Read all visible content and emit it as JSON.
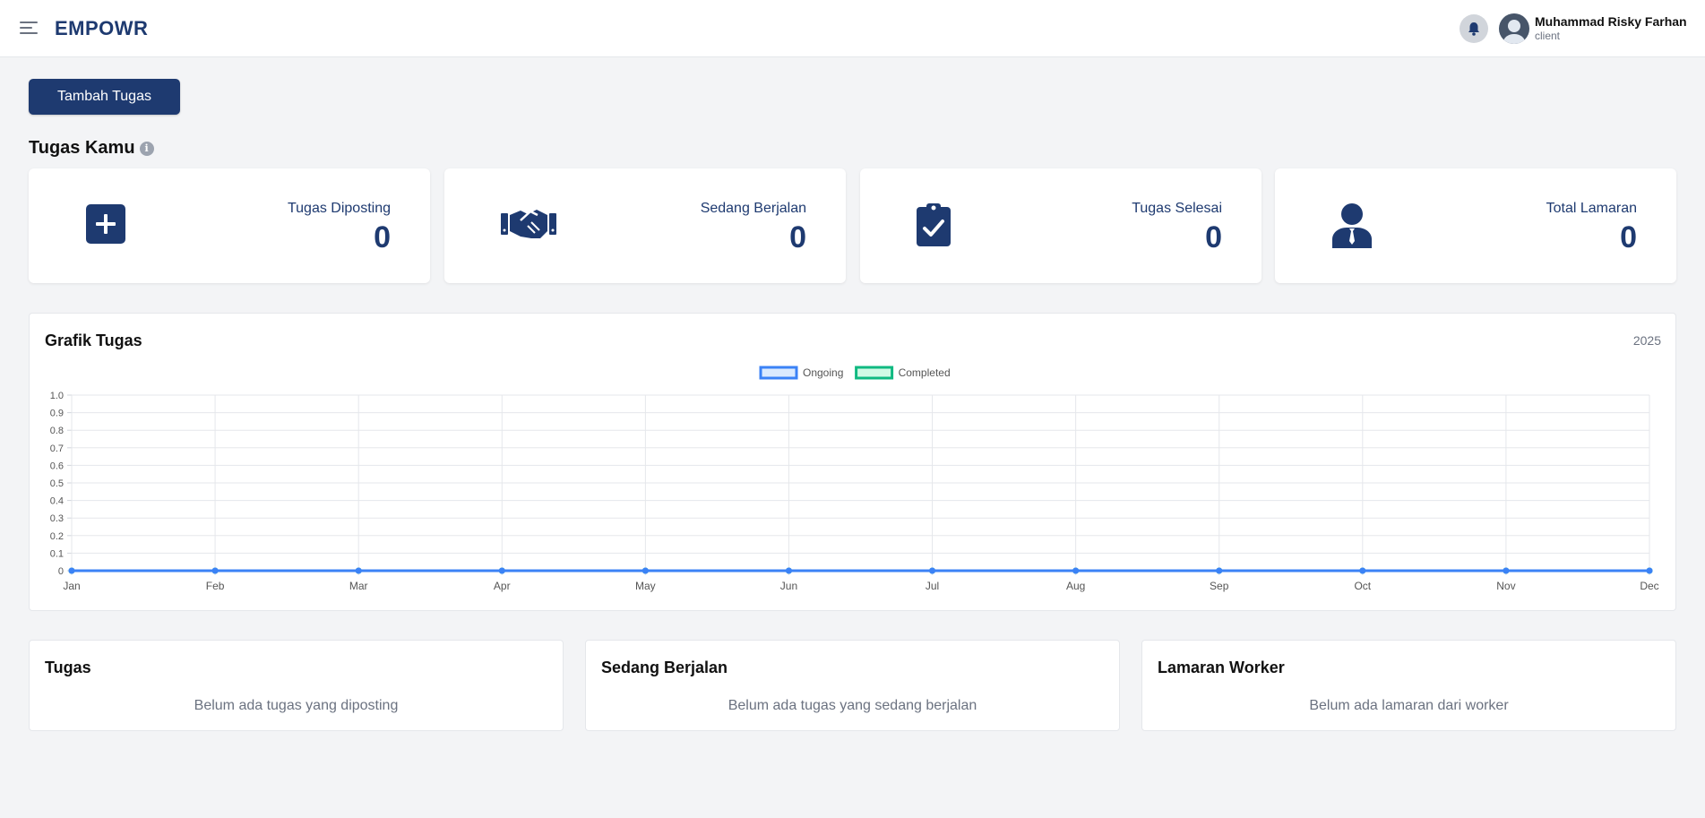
{
  "header": {
    "logo": "EMPOWR",
    "user_name": "Muhammad Risky Farhan",
    "user_role": "client",
    "icons": {
      "menu": "hamburger-icon",
      "notifications": "bell-icon",
      "avatar": "user-avatar"
    }
  },
  "actions": {
    "add_task_label": "Tambah Tugas"
  },
  "summary": {
    "title": "Tugas Kamu",
    "cards": [
      {
        "label": "Tugas Diposting",
        "value": "0",
        "icon": "plus-square-icon"
      },
      {
        "label": "Sedang Berjalan",
        "value": "0",
        "icon": "handshake-icon"
      },
      {
        "label": "Tugas Selesai",
        "value": "0",
        "icon": "clipboard-check-icon"
      },
      {
        "label": "Total Lamaran",
        "value": "0",
        "icon": "user-tie-icon"
      }
    ]
  },
  "chart": {
    "title": "Grafik Tugas",
    "year": "2025"
  },
  "chart_data": {
    "type": "line",
    "categories": [
      "Jan",
      "Feb",
      "Mar",
      "Apr",
      "May",
      "Jun",
      "Jul",
      "Aug",
      "Sep",
      "Oct",
      "Nov",
      "Dec"
    ],
    "series": [
      {
        "name": "Ongoing",
        "color": "#3b82f6",
        "values": [
          0,
          0,
          0,
          0,
          0,
          0,
          0,
          0,
          0,
          0,
          0,
          0
        ]
      },
      {
        "name": "Completed",
        "color": "#10b981",
        "values": [
          0,
          0,
          0,
          0,
          0,
          0,
          0,
          0,
          0,
          0,
          0,
          0
        ]
      }
    ],
    "ylim": [
      0,
      1
    ],
    "yticks": [
      "0",
      "0.1",
      "0.2",
      "0.3",
      "0.4",
      "0.5",
      "0.6",
      "0.7",
      "0.8",
      "0.9",
      "1.0"
    ],
    "grid": true,
    "legend_position": "top-center"
  },
  "lists": [
    {
      "title": "Tugas",
      "empty_text": "Belum ada tugas yang diposting"
    },
    {
      "title": "Sedang Berjalan",
      "empty_text": "Belum ada tugas yang sedang berjalan"
    },
    {
      "title": "Lamaran Worker",
      "empty_text": "Belum ada lamaran dari worker"
    }
  ],
  "colors": {
    "brand": "#1e3a70",
    "background": "#f3f4f6"
  }
}
